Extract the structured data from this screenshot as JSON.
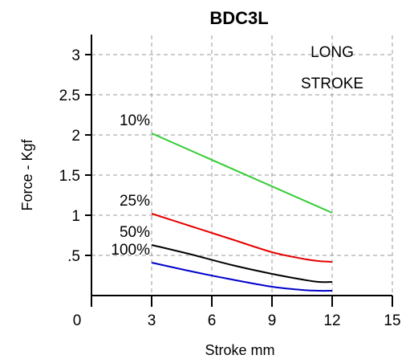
{
  "chart_data": {
    "type": "line",
    "title": "BDC3L",
    "xlabel": "Stroke mm",
    "ylabel": "Force - Kgf",
    "xlim": [
      0,
      15
    ],
    "ylim": [
      0,
      3
    ],
    "xticks": [
      0,
      3,
      6,
      9,
      12,
      15
    ],
    "xtick_labels": [
      "0",
      "3",
      "6",
      "9",
      "12",
      "15"
    ],
    "yticks": [
      0.5,
      1,
      1.5,
      2,
      2.5,
      3
    ],
    "ytick_labels": [
      ".5",
      "1",
      "1.5",
      "2",
      "2.5",
      "3"
    ],
    "grid": "dashed",
    "annotation": [
      "LONG",
      "STROKE"
    ],
    "series": [
      {
        "name": "10%",
        "color": "#33cc33",
        "x": [
          3,
          12
        ],
        "y": [
          2.02,
          1.03
        ]
      },
      {
        "name": "25%",
        "color": "#e60000",
        "x": [
          3,
          5,
          7,
          9,
          10.5,
          11.3,
          12
        ],
        "y": [
          1.02,
          0.86,
          0.7,
          0.54,
          0.46,
          0.43,
          0.42
        ]
      },
      {
        "name": "50%",
        "color": "#000000",
        "x": [
          3,
          5,
          7,
          9,
          10.5,
          11.3,
          12
        ],
        "y": [
          0.63,
          0.51,
          0.38,
          0.27,
          0.2,
          0.17,
          0.17
        ]
      },
      {
        "name": "100%",
        "color": "#0000cc",
        "x": [
          3,
          5,
          7,
          9,
          10.5,
          11.3,
          12
        ],
        "y": [
          0.41,
          0.3,
          0.2,
          0.11,
          0.07,
          0.06,
          0.06
        ]
      }
    ]
  }
}
